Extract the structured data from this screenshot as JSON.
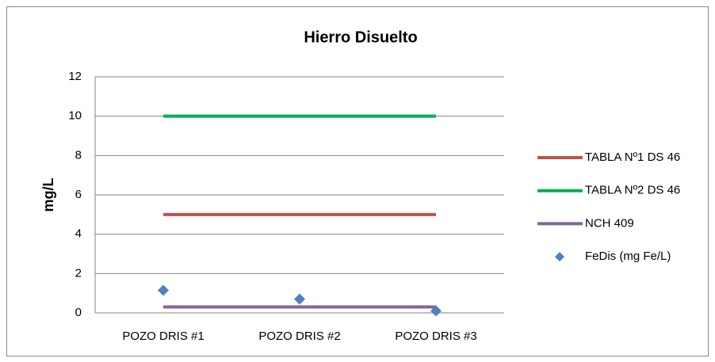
{
  "chart_data": {
    "type": "line",
    "title": "Hierro Disuelto",
    "y_label": "mg/L",
    "categories": [
      "POZO DRIS #1",
      "POZO DRIS #2",
      "POZO DRIS #3"
    ],
    "series": [
      {
        "name": "TABLA Nº1 DS 46",
        "color": "#c0504d",
        "mode": "line",
        "values": [
          5,
          5,
          5
        ]
      },
      {
        "name": "TABLA Nº2 DS 46",
        "color": "#00b050",
        "mode": "line",
        "values": [
          10,
          10,
          10
        ]
      },
      {
        "name": "NCH 409",
        "color": "#8064a2",
        "mode": "line",
        "values": [
          0.3,
          0.3,
          0.3
        ]
      },
      {
        "name": "FeDis  (mg Fe/L)",
        "color": "#4f81bd",
        "mode": "markers",
        "values": [
          1.15,
          0.7,
          0.1
        ]
      }
    ],
    "ylim": [
      0,
      12
    ],
    "yticks": [
      0,
      2,
      4,
      6,
      8,
      10,
      12
    ],
    "grid": true,
    "legend": "right"
  }
}
